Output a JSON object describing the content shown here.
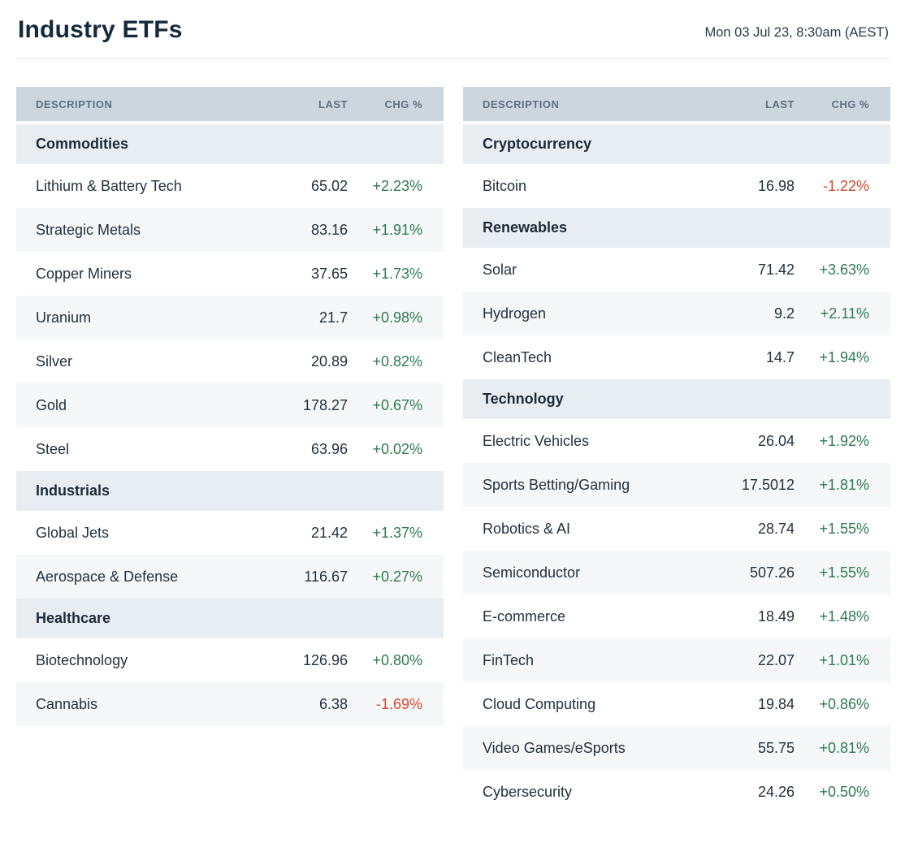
{
  "page": {
    "title": "Industry ETFs",
    "timestamp": "Mon 03 Jul 23, 8:30am (AEST)"
  },
  "colors": {
    "positive": "#2f7b52",
    "negative": "#d7492f",
    "header_bg": "#ccd6de",
    "header_text": "#5f707f",
    "section_bg": "#e8edf1",
    "alt_row_bg": "#f5f7f8",
    "text": "#24313f",
    "title": "#15293e"
  },
  "chart_data": [
    {
      "type": "table",
      "title": "Industry ETFs — left table",
      "columns": [
        "DESCRIPTION",
        "LAST",
        "CHG %"
      ],
      "sections": [
        {
          "name": "Commodities",
          "rows": [
            {
              "description": "Lithium & Battery Tech",
              "last": "65.02",
              "chg": "+2.23%"
            },
            {
              "description": "Strategic Metals",
              "last": "83.16",
              "chg": "+1.91%"
            },
            {
              "description": "Copper Miners",
              "last": "37.65",
              "chg": "+1.73%"
            },
            {
              "description": "Uranium",
              "last": "21.7",
              "chg": "+0.98%"
            },
            {
              "description": "Silver",
              "last": "20.89",
              "chg": "+0.82%"
            },
            {
              "description": "Gold",
              "last": "178.27",
              "chg": "+0.67%"
            },
            {
              "description": "Steel",
              "last": "63.96",
              "chg": "+0.02%"
            }
          ]
        },
        {
          "name": "Industrials",
          "rows": [
            {
              "description": "Global Jets",
              "last": "21.42",
              "chg": "+1.37%"
            },
            {
              "description": "Aerospace & Defense",
              "last": "116.67",
              "chg": "+0.27%"
            }
          ]
        },
        {
          "name": "Healthcare",
          "rows": [
            {
              "description": "Biotechnology",
              "last": "126.96",
              "chg": "+0.80%"
            },
            {
              "description": "Cannabis",
              "last": "6.38",
              "chg": "-1.69%"
            }
          ]
        }
      ]
    },
    {
      "type": "table",
      "title": "Industry ETFs — right table",
      "columns": [
        "DESCRIPTION",
        "LAST",
        "CHG %"
      ],
      "sections": [
        {
          "name": "Cryptocurrency",
          "rows": [
            {
              "description": "Bitcoin",
              "last": "16.98",
              "chg": "-1.22%"
            }
          ]
        },
        {
          "name": "Renewables",
          "rows": [
            {
              "description": "Solar",
              "last": "71.42",
              "chg": "+3.63%"
            },
            {
              "description": "Hydrogen",
              "last": "9.2",
              "chg": "+2.11%"
            },
            {
              "description": "CleanTech",
              "last": "14.7",
              "chg": "+1.94%"
            }
          ]
        },
        {
          "name": "Technology",
          "rows": [
            {
              "description": "Electric Vehicles",
              "last": "26.04",
              "chg": "+1.92%"
            },
            {
              "description": "Sports Betting/Gaming",
              "last": "17.5012",
              "chg": "+1.81%"
            },
            {
              "description": "Robotics & AI",
              "last": "28.74",
              "chg": "+1.55%"
            },
            {
              "description": "Semiconductor",
              "last": "507.26",
              "chg": "+1.55%"
            },
            {
              "description": "E-commerce",
              "last": "18.49",
              "chg": "+1.48%"
            },
            {
              "description": "FinTech",
              "last": "22.07",
              "chg": "+1.01%"
            },
            {
              "description": "Cloud Computing",
              "last": "19.84",
              "chg": "+0.86%"
            },
            {
              "description": "Video Games/eSports",
              "last": "55.75",
              "chg": "+0.81%"
            },
            {
              "description": "Cybersecurity",
              "last": "24.26",
              "chg": "+0.50%"
            }
          ]
        }
      ]
    }
  ]
}
